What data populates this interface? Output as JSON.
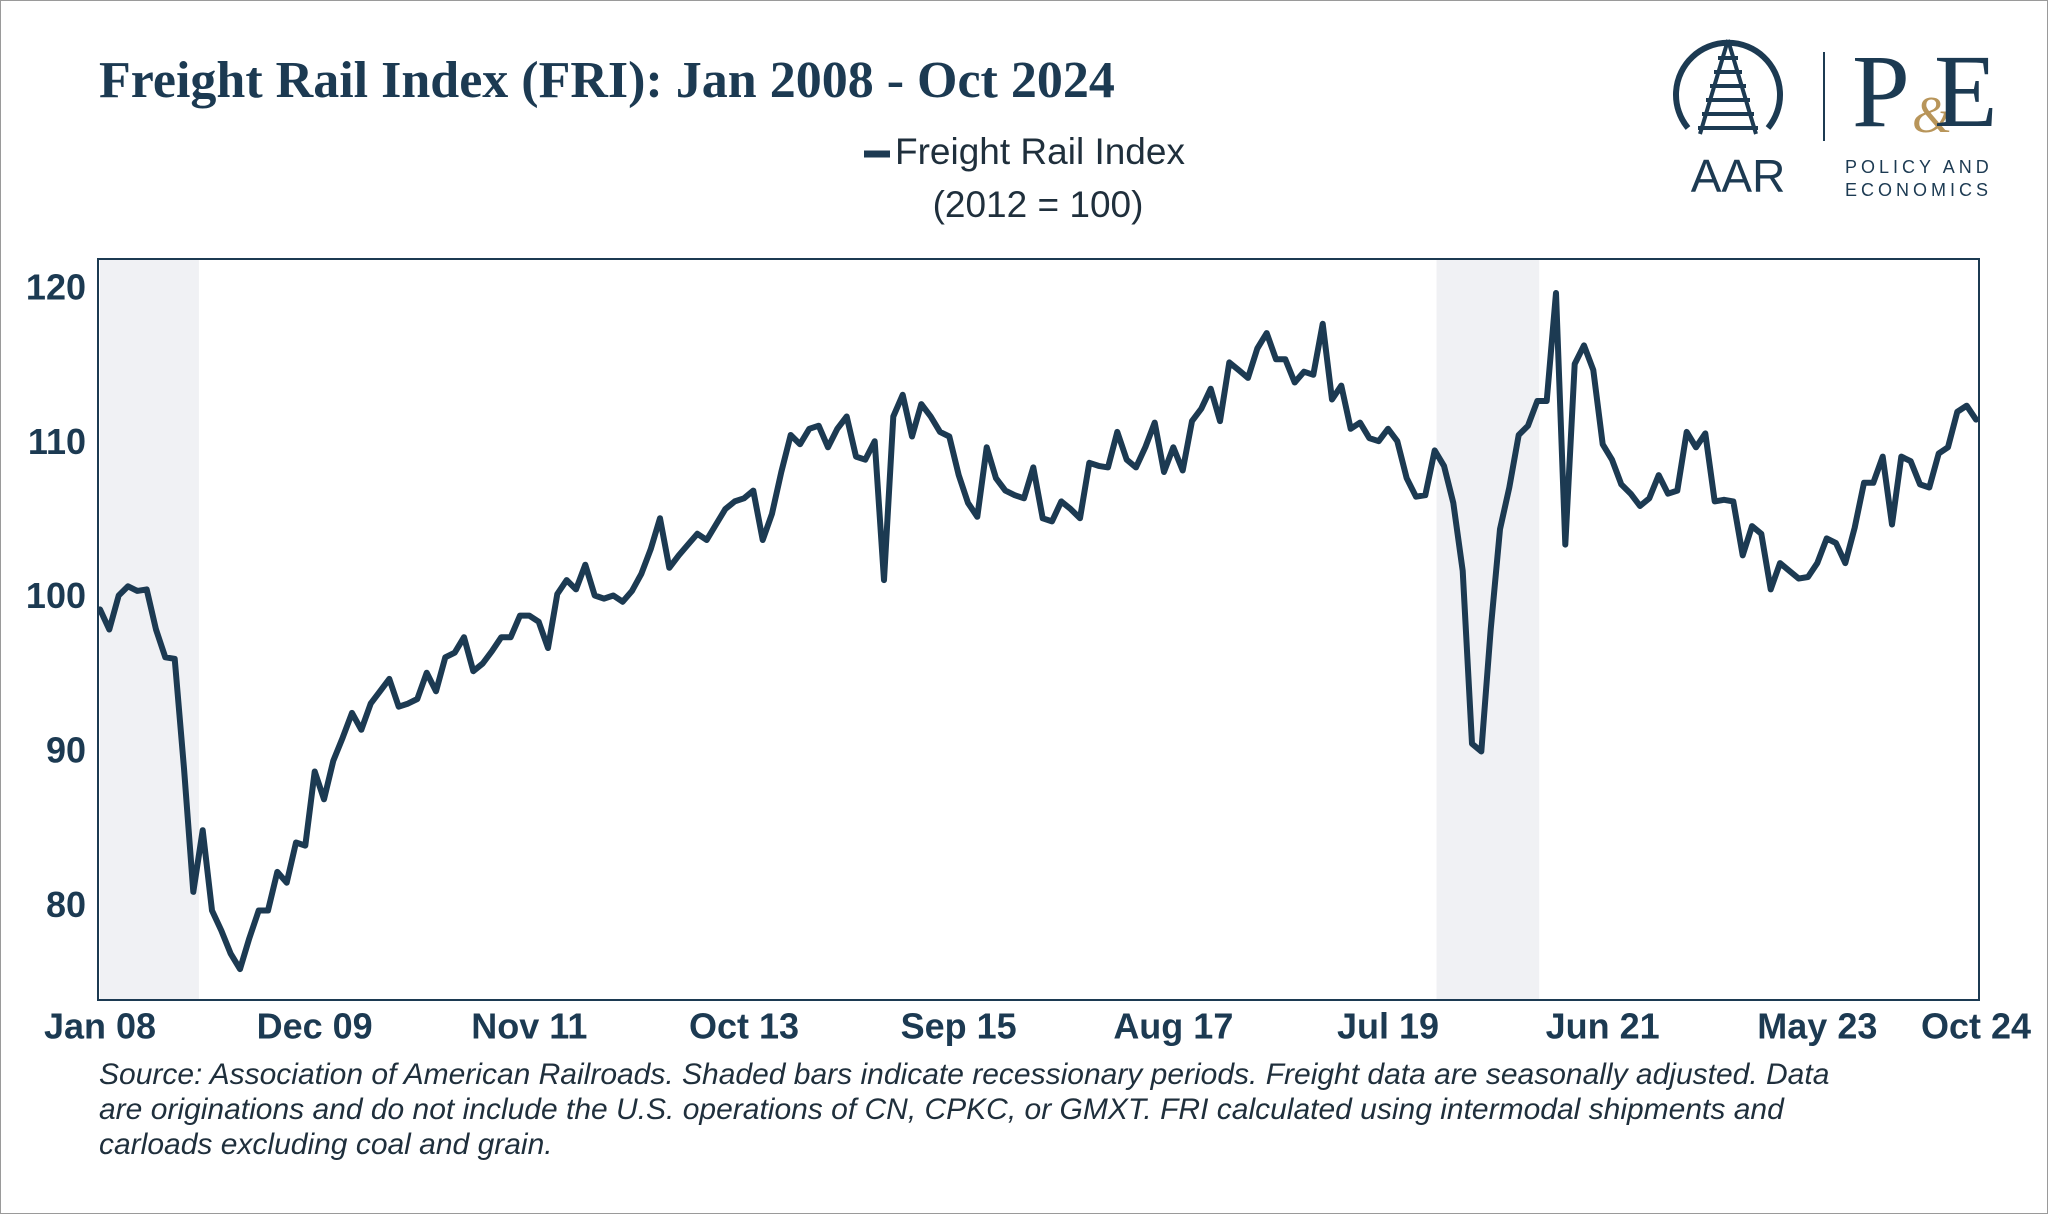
{
  "chart_data": {
    "type": "line",
    "title": "Freight Rail Index (FRI): Jan 2008 - Oct 2024",
    "subtitle": "(2012 = 100)",
    "categories": [
      "Jan 08",
      null,
      null,
      null,
      null,
      null,
      null,
      null,
      null,
      null,
      null,
      null,
      null,
      null,
      null,
      null,
      null,
      null,
      null,
      null,
      null,
      null,
      null,
      "Dec 09",
      null,
      null,
      null,
      null,
      null,
      null,
      null,
      null,
      null,
      null,
      null,
      null,
      null,
      null,
      null,
      null,
      null,
      null,
      null,
      null,
      null,
      null,
      "Nov 11",
      null,
      null,
      null,
      null,
      null,
      null,
      null,
      null,
      null,
      null,
      null,
      null,
      null,
      null,
      null,
      null,
      null,
      null,
      null,
      null,
      null,
      null,
      "Oct 13",
      null,
      null,
      null,
      null,
      null,
      null,
      null,
      null,
      null,
      null,
      null,
      null,
      null,
      null,
      null,
      null,
      null,
      null,
      null,
      null,
      null,
      null,
      "Sep 15",
      null,
      null,
      null,
      null,
      null,
      null,
      null,
      null,
      null,
      null,
      null,
      null,
      null,
      null,
      null,
      null,
      null,
      null,
      null,
      null,
      null,
      null,
      "Aug 17",
      null,
      null,
      null,
      null,
      null,
      null,
      null,
      null,
      null,
      null,
      null,
      null,
      null,
      null,
      null,
      null,
      null,
      null,
      null,
      null,
      null,
      null,
      "Jul 19",
      null,
      null,
      null,
      null,
      null,
      null,
      null,
      null,
      null,
      null,
      null,
      null,
      null,
      null,
      null,
      null,
      null,
      null,
      null,
      null,
      null,
      null,
      "Jun 21",
      null,
      null,
      null,
      null,
      null,
      null,
      null,
      null,
      null,
      null,
      null,
      null,
      null,
      null,
      null,
      null,
      null,
      null,
      null,
      null,
      null,
      null,
      "May 23",
      null,
      null,
      null,
      null,
      null,
      null,
      null,
      null,
      null,
      null,
      null,
      null,
      null,
      null,
      null,
      null,
      "Oct 24"
    ],
    "series": [
      {
        "name": "Freight Rail Index",
        "color": "#1c3a52",
        "values": [
          99.3,
          98.0,
          100.2,
          100.8,
          100.5,
          100.6,
          98.0,
          96.2,
          96.1,
          89.0,
          81.0,
          85.0,
          79.8,
          78.5,
          77.0,
          76.0,
          78.0,
          79.8,
          79.8,
          82.3,
          81.6,
          84.2,
          84.0,
          88.8,
          87.0,
          89.5,
          91.0,
          92.6,
          91.5,
          93.2,
          94.0,
          94.8,
          93.0,
          93.2,
          93.5,
          95.2,
          94.0,
          96.2,
          96.5,
          97.5,
          95.3,
          95.8,
          96.6,
          97.5,
          97.5,
          98.9,
          98.9,
          98.5,
          96.8,
          100.3,
          101.2,
          100.6,
          102.2,
          100.2,
          100.0,
          100.2,
          99.8,
          100.5,
          101.6,
          103.2,
          105.2,
          102.0,
          102.8,
          103.5,
          104.2,
          103.8,
          104.8,
          105.8,
          106.3,
          106.5,
          107.0,
          103.8,
          105.5,
          108.2,
          110.6,
          110.0,
          111.0,
          111.2,
          109.8,
          111.0,
          111.8,
          109.2,
          109.0,
          110.2,
          101.2,
          111.8,
          113.2,
          110.5,
          112.6,
          111.8,
          110.8,
          110.5,
          108.0,
          106.2,
          105.3,
          109.8,
          107.8,
          107.0,
          106.7,
          106.5,
          108.5,
          105.2,
          105.0,
          106.3,
          105.8,
          105.2,
          108.8,
          108.6,
          108.5,
          110.8,
          109.0,
          108.5,
          109.8,
          111.4,
          108.2,
          109.8,
          108.3,
          111.5,
          112.3,
          113.6,
          111.5,
          115.3,
          114.8,
          114.3,
          116.2,
          117.2,
          115.5,
          115.5,
          114.0,
          114.7,
          114.5,
          117.8,
          112.9,
          113.8,
          111.0,
          111.4,
          110.4,
          110.2,
          111.0,
          110.2,
          107.8,
          106.6,
          106.7,
          109.6,
          108.6,
          106.2,
          101.8,
          90.6,
          90.1,
          98.0,
          104.5,
          107.2,
          110.6,
          111.2,
          112.8,
          112.8,
          119.8,
          103.5,
          115.2,
          116.4,
          114.8,
          110.0,
          109.0,
          107.4,
          106.8,
          106.0,
          106.5,
          108.0,
          106.8,
          107.0,
          110.8,
          109.8,
          110.7,
          106.3,
          106.4,
          106.3,
          102.8,
          104.7,
          104.2,
          100.6,
          102.3,
          101.8,
          101.3,
          101.4,
          102.3,
          103.9,
          103.6,
          102.3,
          104.6,
          107.5,
          107.5,
          109.2,
          104.8,
          109.2,
          108.9,
          107.4,
          107.2,
          109.4,
          109.8,
          112.1,
          112.5,
          111.6
        ]
      }
    ],
    "recession_shading": [
      [
        0,
        10.6
      ],
      [
        143.2,
        154.2
      ]
    ],
    "shading_color": "#f0f1f4",
    "ylim": [
      74,
      122
    ],
    "yticks": [
      80,
      90,
      100,
      110,
      120
    ],
    "grid": false,
    "note": [
      "Source: Association of American Railroads. Shaded bars indicate recessionary periods. Freight data are seasonally adjusted. Data",
      "are originations and do not include the U.S. operations of CN, CPKC, or GMXT. FRI calculated using intermodal shipments and",
      "carloads excluding coal and grain."
    ]
  },
  "logo": {
    "aar": "AAR",
    "p": "P",
    "amp": "&",
    "e": "E",
    "tagline": [
      "POLICY AND",
      "ECONOMICS"
    ]
  }
}
